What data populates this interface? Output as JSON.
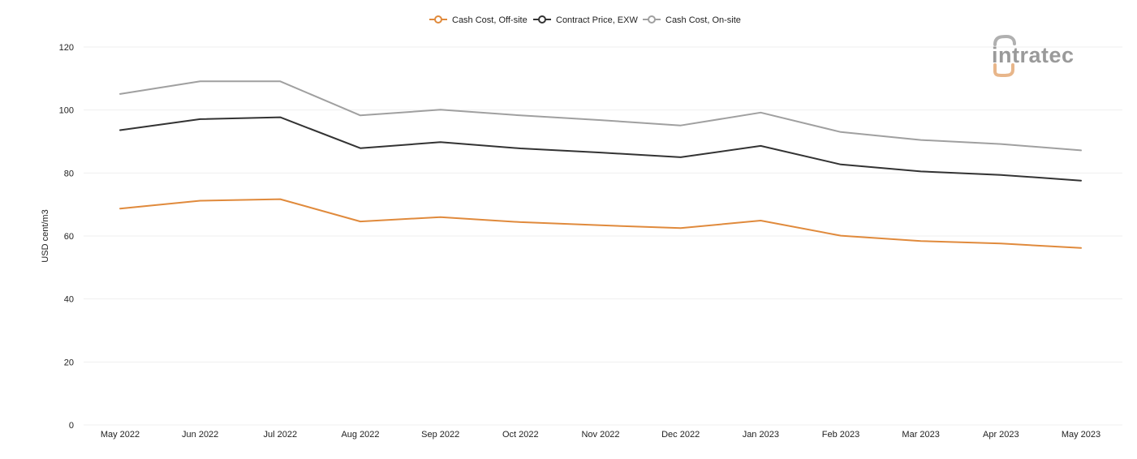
{
  "chart_data": {
    "type": "line",
    "title": "",
    "xlabel": "",
    "ylabel": "USD cent/m3",
    "ylim": [
      0,
      120
    ],
    "yticks": [
      0,
      20,
      40,
      60,
      80,
      100,
      120
    ],
    "grid": true,
    "legend_position": "top-center",
    "categories": [
      "May 2022",
      "Jun 2022",
      "Jul 2022",
      "Aug 2022",
      "Sep 2022",
      "Oct 2022",
      "Nov 2022",
      "Dec 2022",
      "Jan 2023",
      "Feb 2023",
      "Mar 2023",
      "Apr 2023",
      "May 2023"
    ],
    "series": [
      {
        "name": "Cash Cost, Off-site",
        "color": "#e08a3c",
        "values": [
          68.7,
          71.2,
          71.7,
          64.6,
          66.0,
          64.4,
          63.4,
          62.5,
          64.9,
          60.1,
          58.4,
          57.6,
          56.2
        ]
      },
      {
        "name": "Contract Price, EXW",
        "color": "#333333",
        "values": [
          93.6,
          97.1,
          97.7,
          87.9,
          89.8,
          87.8,
          86.5,
          85.0,
          88.6,
          82.7,
          80.5,
          79.4,
          77.6
        ]
      },
      {
        "name": "Cash Cost, On-site",
        "color": "#a0a0a0",
        "values": [
          105.1,
          109.1,
          109.1,
          98.3,
          100.1,
          98.3,
          96.8,
          95.1,
          99.2,
          93.0,
          90.5,
          89.2,
          87.2
        ]
      }
    ]
  },
  "logo": {
    "text": "intratec",
    "color": "#9a9a9a",
    "accent": "#e8b68a"
  }
}
